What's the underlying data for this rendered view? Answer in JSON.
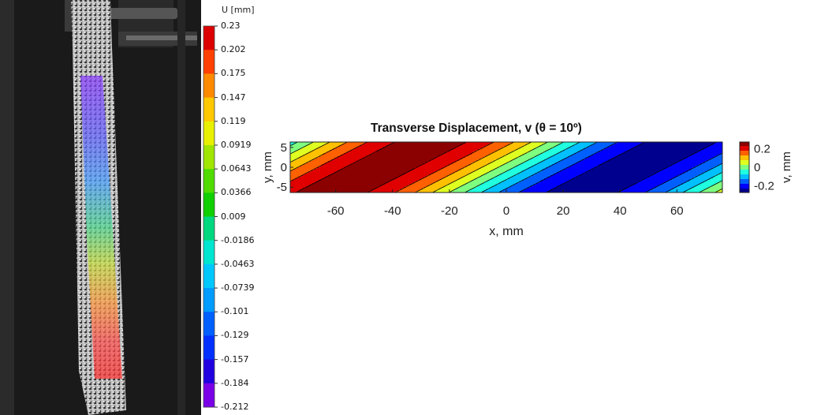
{
  "photo_panel": {
    "legend_title": "U [mm]",
    "legend_ticks": [
      "0.23",
      "0.202",
      "0.175",
      "0.147",
      "0.119",
      "0.0919",
      "0.0643",
      "0.0366",
      "0.009",
      "-0.0186",
      "-0.0463",
      "-0.0739",
      "-0.101",
      "-0.129",
      "-0.157",
      "-0.184",
      "-0.212"
    ],
    "legend_colors": [
      "#dc0000",
      "#ff4000",
      "#ff8a00",
      "#ffc800",
      "#e8f000",
      "#a0e600",
      "#50dc00",
      "#10d000",
      "#00d880",
      "#00e6d0",
      "#00c8ff",
      "#009cff",
      "#0060ff",
      "#0030ff",
      "#2000e0",
      "#7a00e8",
      "#d800f0"
    ]
  },
  "chart_data": {
    "type": "heatmap",
    "title": "Transverse Displacement, v (θ = 10º)",
    "xlabel": "x, mm",
    "ylabel": "y, mm",
    "xlim": [
      -76,
      76
    ],
    "ylim": [
      -6.35,
      6.35
    ],
    "xticks": [
      "-60",
      "-40",
      "-20",
      "0",
      "20",
      "40",
      "60"
    ],
    "xtick_values": [
      -60,
      -40,
      -20,
      0,
      20,
      40,
      60
    ],
    "yticks": [
      "5",
      "0",
      "-5"
    ],
    "ytick_values": [
      5,
      0,
      -5
    ],
    "colorbar": {
      "label": "v, mm",
      "ticks": [
        "0.2",
        "0",
        "-0.2"
      ],
      "tick_values": [
        0.2,
        0,
        -0.2
      ],
      "range": [
        -0.27,
        0.27
      ]
    },
    "field": "v(x,y) ≈ 0.25·sin(-(π/88)·(x − 2.74·y))",
    "levels": [
      -0.225,
      -0.175,
      -0.125,
      -0.075,
      -0.025,
      0.025,
      0.075,
      0.125,
      0.175,
      0.225
    ],
    "level_colors": [
      "#00008f",
      "#0000ff",
      "#0060ff",
      "#00c0ff",
      "#20ffdf",
      "#7fff80",
      "#dfff20",
      "#ffc000",
      "#ff6000",
      "#e00000",
      "#8b0000"
    ]
  }
}
